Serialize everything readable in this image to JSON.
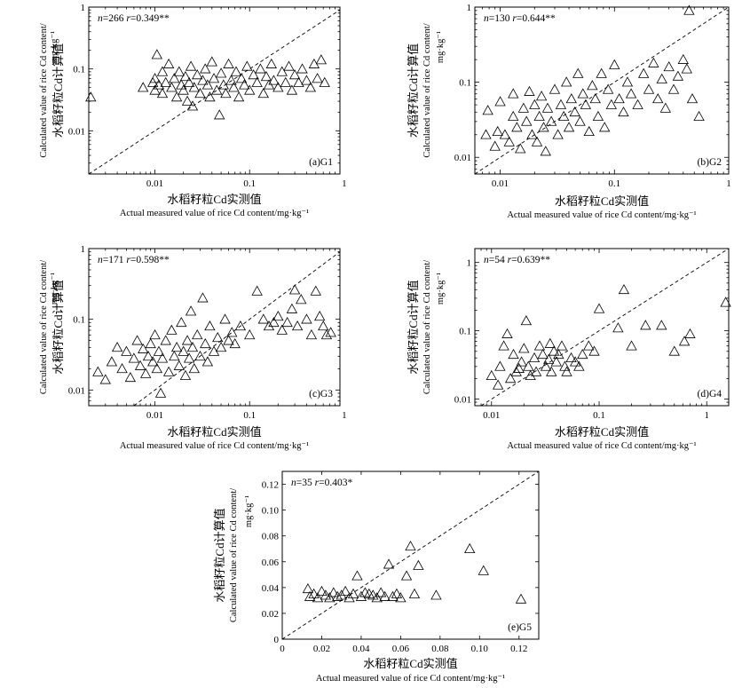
{
  "chart_data": [
    {
      "id": "G1",
      "type": "scatter",
      "scale": "log",
      "stat_n": "266",
      "stat_r": "0.349**",
      "panel_label": "(a)G1",
      "x_ticks": [
        "0.01",
        "0.1",
        "1"
      ],
      "y_ticks": [
        "1",
        "0.1",
        "0.01"
      ],
      "xlabel_cn": "水稻籽粒Cd实测值",
      "xlabel_en": "Actual measured value of rice Cd content/mg·kg⁻¹",
      "ylabel_cn": "水稻籽粒Cd计算值",
      "ylabel_en1": "Calculated value of rice Cd content/",
      "ylabel_en2": "mg·kg⁻¹",
      "xlim": [
        0.002,
        0.9
      ],
      "ylim": [
        0.002,
        1
      ],
      "points": [
        [
          0.0021,
          0.035
        ],
        [
          0.0075,
          0.05
        ],
        [
          0.0095,
          0.06
        ],
        [
          0.01,
          0.07
        ],
        [
          0.01,
          0.045
        ],
        [
          0.0105,
          0.17
        ],
        [
          0.011,
          0.055
        ],
        [
          0.012,
          0.09
        ],
        [
          0.012,
          0.04
        ],
        [
          0.013,
          0.06
        ],
        [
          0.014,
          0.12
        ],
        [
          0.015,
          0.05
        ],
        [
          0.016,
          0.07
        ],
        [
          0.017,
          0.035
        ],
        [
          0.018,
          0.09
        ],
        [
          0.019,
          0.055
        ],
        [
          0.02,
          0.045
        ],
        [
          0.021,
          0.075
        ],
        [
          0.022,
          0.03
        ],
        [
          0.023,
          0.06
        ],
        [
          0.024,
          0.11
        ],
        [
          0.025,
          0.025
        ],
        [
          0.026,
          0.05
        ],
        [
          0.028,
          0.08
        ],
        [
          0.03,
          0.04
        ],
        [
          0.032,
          0.065
        ],
        [
          0.034,
          0.1
        ],
        [
          0.036,
          0.055
        ],
        [
          0.038,
          0.035
        ],
        [
          0.04,
          0.13
        ],
        [
          0.042,
          0.07
        ],
        [
          0.045,
          0.045
        ],
        [
          0.048,
          0.018
        ],
        [
          0.05,
          0.085
        ],
        [
          0.053,
          0.055
        ],
        [
          0.056,
          0.04
        ],
        [
          0.06,
          0.12
        ],
        [
          0.064,
          0.065
        ],
        [
          0.068,
          0.05
        ],
        [
          0.072,
          0.09
        ],
        [
          0.077,
          0.035
        ],
        [
          0.082,
          0.07
        ],
        [
          0.088,
          0.055
        ],
        [
          0.094,
          0.11
        ],
        [
          0.1,
          0.045
        ],
        [
          0.11,
          0.08
        ],
        [
          0.12,
          0.06
        ],
        [
          0.13,
          0.1
        ],
        [
          0.14,
          0.04
        ],
        [
          0.15,
          0.075
        ],
        [
          0.16,
          0.055
        ],
        [
          0.17,
          0.12
        ],
        [
          0.18,
          0.065
        ],
        [
          0.2,
          0.05
        ],
        [
          0.22,
          0.09
        ],
        [
          0.24,
          0.06
        ],
        [
          0.26,
          0.11
        ],
        [
          0.28,
          0.045
        ],
        [
          0.3,
          0.08
        ],
        [
          0.33,
          0.06
        ],
        [
          0.36,
          0.1
        ],
        [
          0.4,
          0.065
        ],
        [
          0.44,
          0.05
        ],
        [
          0.48,
          0.12
        ],
        [
          0.52,
          0.07
        ],
        [
          0.57,
          0.14
        ],
        [
          0.62,
          0.06
        ]
      ]
    },
    {
      "id": "G2",
      "type": "scatter",
      "scale": "log",
      "stat_n": "130",
      "stat_r": "0.644**",
      "panel_label": "(b)G2",
      "x_ticks": [
        "0.01",
        "0.1",
        "1"
      ],
      "y_ticks": [
        "1",
        "0.1",
        "0.01"
      ],
      "xlabel_cn": "水稻籽粒Cd实测值",
      "xlabel_en": "Actual measured value of rice Cd content/mg·kg⁻¹",
      "ylabel_cn": "水稻籽粒Cd计算值",
      "ylabel_en1": "Calculated value of rice Cd content/",
      "ylabel_en2": "mg·kg⁻¹",
      "xlim": [
        0.006,
        1
      ],
      "ylim": [
        0.006,
        1
      ],
      "points": [
        [
          0.0075,
          0.02
        ],
        [
          0.0078,
          0.042
        ],
        [
          0.009,
          0.014
        ],
        [
          0.0095,
          0.022
        ],
        [
          0.01,
          0.055
        ],
        [
          0.011,
          0.02
        ],
        [
          0.012,
          0.016
        ],
        [
          0.013,
          0.035
        ],
        [
          0.013,
          0.07
        ],
        [
          0.014,
          0.025
        ],
        [
          0.015,
          0.013
        ],
        [
          0.016,
          0.045
        ],
        [
          0.017,
          0.03
        ],
        [
          0.018,
          0.075
        ],
        [
          0.019,
          0.02
        ],
        [
          0.02,
          0.05
        ],
        [
          0.021,
          0.016
        ],
        [
          0.022,
          0.035
        ],
        [
          0.023,
          0.065
        ],
        [
          0.024,
          0.025
        ],
        [
          0.025,
          0.012
        ],
        [
          0.026,
          0.045
        ],
        [
          0.028,
          0.03
        ],
        [
          0.03,
          0.08
        ],
        [
          0.032,
          0.02
        ],
        [
          0.034,
          0.05
        ],
        [
          0.036,
          0.035
        ],
        [
          0.038,
          0.1
        ],
        [
          0.04,
          0.025
        ],
        [
          0.042,
          0.06
        ],
        [
          0.045,
          0.04
        ],
        [
          0.048,
          0.13
        ],
        [
          0.05,
          0.03
        ],
        [
          0.053,
          0.07
        ],
        [
          0.056,
          0.05
        ],
        [
          0.06,
          0.022
        ],
        [
          0.064,
          0.09
        ],
        [
          0.068,
          0.06
        ],
        [
          0.072,
          0.035
        ],
        [
          0.077,
          0.13
        ],
        [
          0.082,
          0.025
        ],
        [
          0.088,
          0.08
        ],
        [
          0.094,
          0.05
        ],
        [
          0.1,
          0.17
        ],
        [
          0.11,
          0.06
        ],
        [
          0.12,
          0.04
        ],
        [
          0.13,
          0.1
        ],
        [
          0.14,
          0.07
        ],
        [
          0.16,
          0.05
        ],
        [
          0.18,
          0.13
        ],
        [
          0.2,
          0.08
        ],
        [
          0.22,
          0.18
        ],
        [
          0.24,
          0.06
        ],
        [
          0.26,
          0.11
        ],
        [
          0.28,
          0.045
        ],
        [
          0.3,
          0.16
        ],
        [
          0.33,
          0.08
        ],
        [
          0.36,
          0.12
        ],
        [
          0.4,
          0.2
        ],
        [
          0.43,
          0.15
        ],
        [
          0.45,
          0.9
        ],
        [
          0.48,
          0.06
        ],
        [
          0.55,
          0.035
        ]
      ]
    },
    {
      "id": "G3",
      "type": "scatter",
      "scale": "log",
      "stat_n": "171",
      "stat_r": "0.598**",
      "panel_label": "(c)G3",
      "x_ticks": [
        "0.01",
        "0.1",
        "1"
      ],
      "y_ticks": [
        "1",
        "0.1",
        "0.01"
      ],
      "xlabel_cn": "水稻籽粒Cd实测值",
      "xlabel_en": "Actual measured value of rice Cd content/mg·kg⁻¹",
      "ylabel_cn": "水稻籽粒Cd计算值",
      "ylabel_en1": "Calculated value of rice Cd content/",
      "ylabel_en2": "mg·kg⁻¹",
      "xlim": [
        0.002,
        0.9
      ],
      "ylim": [
        0.006,
        1
      ],
      "points": [
        [
          0.0025,
          0.018
        ],
        [
          0.003,
          0.014
        ],
        [
          0.0035,
          0.025
        ],
        [
          0.004,
          0.04
        ],
        [
          0.0045,
          0.02
        ],
        [
          0.005,
          0.035
        ],
        [
          0.0055,
          0.015
        ],
        [
          0.006,
          0.028
        ],
        [
          0.0065,
          0.05
        ],
        [
          0.007,
          0.022
        ],
        [
          0.0075,
          0.038
        ],
        [
          0.008,
          0.017
        ],
        [
          0.0085,
          0.03
        ],
        [
          0.009,
          0.045
        ],
        [
          0.0095,
          0.025
        ],
        [
          0.01,
          0.06
        ],
        [
          0.0105,
          0.02
        ],
        [
          0.011,
          0.035
        ],
        [
          0.0115,
          0.009
        ],
        [
          0.012,
          0.028
        ],
        [
          0.013,
          0.05
        ],
        [
          0.014,
          0.018
        ],
        [
          0.015,
          0.07
        ],
        [
          0.016,
          0.03
        ],
        [
          0.017,
          0.04
        ],
        [
          0.018,
          0.022
        ],
        [
          0.019,
          0.09
        ],
        [
          0.02,
          0.035
        ],
        [
          0.021,
          0.016
        ],
        [
          0.022,
          0.05
        ],
        [
          0.023,
          0.028
        ],
        [
          0.024,
          0.13
        ],
        [
          0.025,
          0.04
        ],
        [
          0.026,
          0.02
        ],
        [
          0.028,
          0.06
        ],
        [
          0.03,
          0.03
        ],
        [
          0.032,
          0.2
        ],
        [
          0.034,
          0.045
        ],
        [
          0.036,
          0.025
        ],
        [
          0.038,
          0.08
        ],
        [
          0.042,
          0.035
        ],
        [
          0.046,
          0.055
        ],
        [
          0.05,
          0.04
        ],
        [
          0.055,
          0.1
        ],
        [
          0.06,
          0.05
        ],
        [
          0.065,
          0.065
        ],
        [
          0.07,
          0.045
        ],
        [
          0.08,
          0.08
        ],
        [
          0.1,
          0.06
        ],
        [
          0.12,
          0.25
        ],
        [
          0.14,
          0.1
        ],
        [
          0.16,
          0.08
        ],
        [
          0.18,
          0.09
        ],
        [
          0.2,
          0.11
        ],
        [
          0.22,
          0.07
        ],
        [
          0.25,
          0.09
        ],
        [
          0.28,
          0.14
        ],
        [
          0.3,
          0.26
        ],
        [
          0.32,
          0.08
        ],
        [
          0.35,
          0.19
        ],
        [
          0.4,
          0.1
        ],
        [
          0.45,
          0.06
        ],
        [
          0.5,
          0.25
        ],
        [
          0.55,
          0.11
        ],
        [
          0.6,
          0.08
        ],
        [
          0.65,
          0.06
        ],
        [
          0.72,
          0.065
        ]
      ]
    },
    {
      "id": "G4",
      "type": "scatter",
      "scale": "log",
      "stat_n": "54",
      "stat_r": "0.639**",
      "panel_label": "(d)G4",
      "x_ticks": [
        "0.01",
        "0.1",
        "1"
      ],
      "y_ticks": [
        "1",
        "0.1",
        "0.01"
      ],
      "xlabel_cn": "水稻籽粒Cd实测值",
      "xlabel_en": "Actual measured value of rice Cd content/mg·kg⁻¹",
      "ylabel_cn": "水稻籽粒Cd计算值",
      "ylabel_en1": "Calculated value of rice Cd content/",
      "ylabel_en2": "mg·kg⁻¹",
      "xlim": [
        0.007,
        1.6
      ],
      "ylim": [
        0.008,
        1.6
      ],
      "points": [
        [
          0.01,
          0.022
        ],
        [
          0.0115,
          0.016
        ],
        [
          0.012,
          0.03
        ],
        [
          0.013,
          0.06
        ],
        [
          0.014,
          0.09
        ],
        [
          0.015,
          0.02
        ],
        [
          0.016,
          0.045
        ],
        [
          0.017,
          0.025
        ],
        [
          0.018,
          0.028
        ],
        [
          0.019,
          0.035
        ],
        [
          0.02,
          0.055
        ],
        [
          0.021,
          0.14
        ],
        [
          0.022,
          0.03
        ],
        [
          0.023,
          0.022
        ],
        [
          0.025,
          0.04
        ],
        [
          0.026,
          0.025
        ],
        [
          0.028,
          0.06
        ],
        [
          0.03,
          0.045
        ],
        [
          0.032,
          0.03
        ],
        [
          0.034,
          0.038
        ],
        [
          0.035,
          0.065
        ],
        [
          0.036,
          0.025
        ],
        [
          0.038,
          0.05
        ],
        [
          0.04,
          0.035
        ],
        [
          0.042,
          0.045
        ],
        [
          0.045,
          0.06
        ],
        [
          0.048,
          0.03
        ],
        [
          0.05,
          0.025
        ],
        [
          0.055,
          0.04
        ],
        [
          0.06,
          0.035
        ],
        [
          0.065,
          0.03
        ],
        [
          0.07,
          0.045
        ],
        [
          0.08,
          0.06
        ],
        [
          0.09,
          0.05
        ],
        [
          0.1,
          0.21
        ],
        [
          0.15,
          0.11
        ],
        [
          0.17,
          0.4
        ],
        [
          0.2,
          0.06
        ],
        [
          0.27,
          0.12
        ],
        [
          0.38,
          0.12
        ],
        [
          0.5,
          0.05
        ],
        [
          0.62,
          0.07
        ],
        [
          0.7,
          0.09
        ],
        [
          1.5,
          0.26
        ]
      ]
    },
    {
      "id": "G5",
      "type": "scatter",
      "scale": "linear",
      "stat_n": "35",
      "stat_r": "0.403*",
      "panel_label": "(e)G5",
      "x_ticks": [
        "0",
        "0.02",
        "0.04",
        "0.06",
        "0.08",
        "0.10",
        "0.12"
      ],
      "y_ticks": [
        "0.12",
        "0.10",
        "0.08",
        "0.06",
        "0.04",
        "0.02",
        "0"
      ],
      "xlabel_cn": "水稻籽粒Cd实测值",
      "xlabel_en": "Actual measured value of rice Cd content/mg·kg⁻¹",
      "ylabel_cn": "水稻籽粒Cd计算值",
      "ylabel_en1": "Calculated value of rice Cd content/",
      "ylabel_en2": "mg·kg⁻¹",
      "xlim": [
        0,
        0.13
      ],
      "ylim": [
        0,
        0.13
      ],
      "points": [
        [
          0.013,
          0.039
        ],
        [
          0.014,
          0.033
        ],
        [
          0.016,
          0.035
        ],
        [
          0.018,
          0.032
        ],
        [
          0.02,
          0.037
        ],
        [
          0.022,
          0.034
        ],
        [
          0.024,
          0.032
        ],
        [
          0.026,
          0.036
        ],
        [
          0.028,
          0.033
        ],
        [
          0.03,
          0.034
        ],
        [
          0.032,
          0.037
        ],
        [
          0.034,
          0.032
        ],
        [
          0.036,
          0.035
        ],
        [
          0.038,
          0.049
        ],
        [
          0.04,
          0.033
        ],
        [
          0.042,
          0.036
        ],
        [
          0.044,
          0.035
        ],
        [
          0.046,
          0.034
        ],
        [
          0.048,
          0.032
        ],
        [
          0.05,
          0.036
        ],
        [
          0.052,
          0.033
        ],
        [
          0.054,
          0.058
        ],
        [
          0.056,
          0.033
        ],
        [
          0.058,
          0.035
        ],
        [
          0.06,
          0.032
        ],
        [
          0.063,
          0.049
        ],
        [
          0.065,
          0.072
        ],
        [
          0.067,
          0.035
        ],
        [
          0.069,
          0.057
        ],
        [
          0.078,
          0.034
        ],
        [
          0.095,
          0.07
        ],
        [
          0.102,
          0.053
        ],
        [
          0.121,
          0.031
        ]
      ]
    }
  ]
}
